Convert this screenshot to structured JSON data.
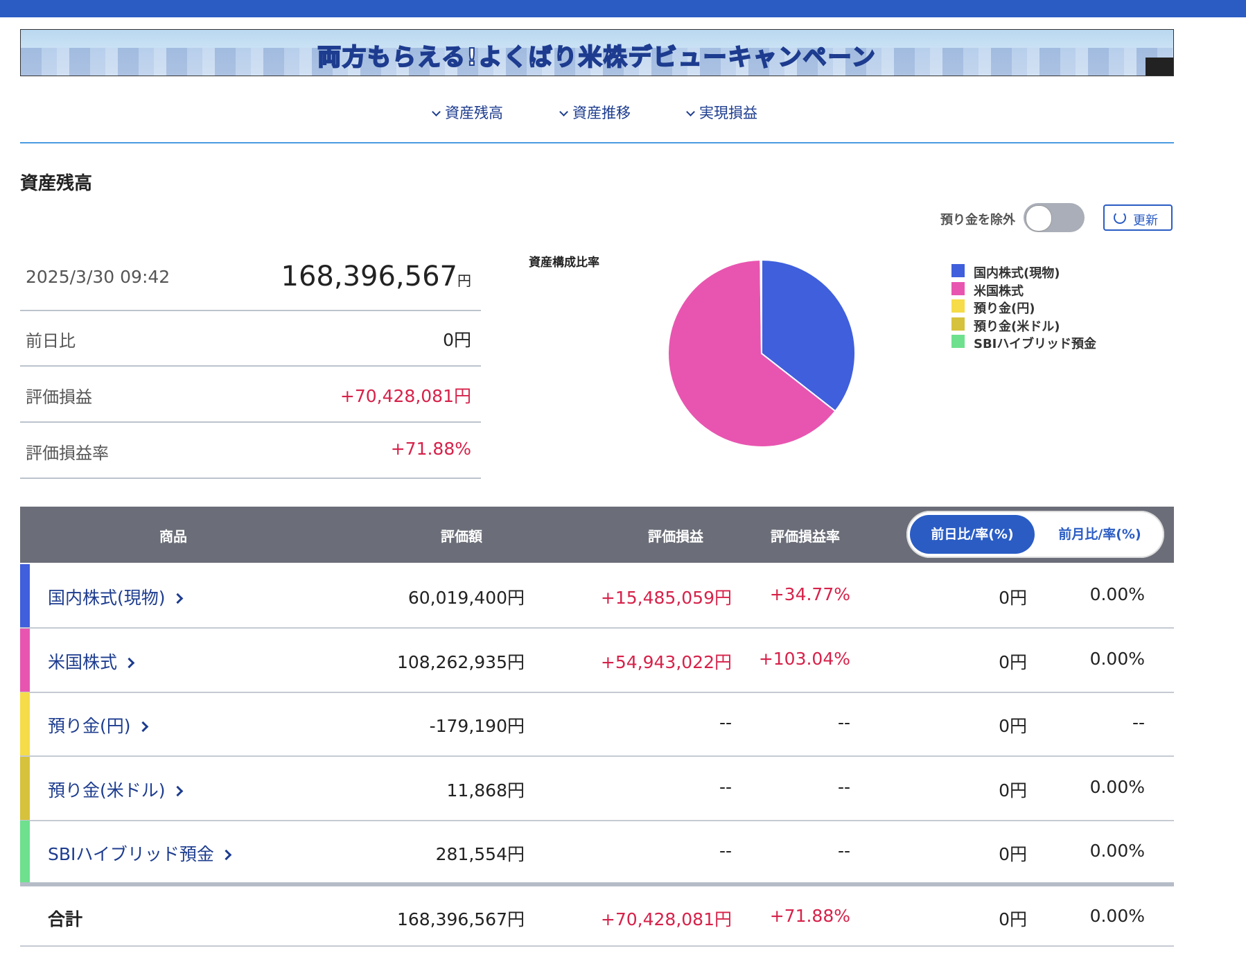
{
  "banner": {
    "text": "両方もらえる!よくばり米株デビューキャンペーン"
  },
  "nav": [
    "資産残高",
    "資産推移",
    "実現損益"
  ],
  "section_title": "資産残高",
  "controls": {
    "toggle_label": "預り金を除外",
    "refresh": "更新"
  },
  "summary": {
    "datetime": "2025/3/30 09:42",
    "total": "168,396,567",
    "total_unit": "円",
    "rows": [
      [
        "前日比",
        "0円"
      ],
      [
        "評価損益",
        "+70,428,081円"
      ],
      [
        "評価損益率",
        "+71.88%"
      ]
    ]
  },
  "chart_data": {
    "type": "pie",
    "title": "資産構成比率",
    "categories": [
      "国内株式(現物)",
      "米国株式",
      "預り金(円)",
      "預り金(米ドル)",
      "SBIハイブリッド預金"
    ],
    "values": [
      35.6,
      64.3,
      0,
      0,
      0.2
    ],
    "colors": [
      "#3f5fdc",
      "#e855b0",
      "#f5dc48",
      "#d6c23c",
      "#6ee08e"
    ]
  },
  "table": {
    "headers": [
      "商品",
      "評価額",
      "評価損益",
      "評価損益率"
    ],
    "tabs": [
      "前日比/率(%)",
      "前月比/率(%)"
    ],
    "rows": [
      [
        "国内株式(現物)",
        "60,019,400円",
        "+15,485,059円",
        "+34.77%",
        "0円",
        "0.00%"
      ],
      [
        "米国株式",
        "108,262,935円",
        "+54,943,022円",
        "+103.04%",
        "0円",
        "0.00%"
      ],
      [
        "預り金(円)",
        "-179,190円",
        "--",
        "--",
        "0円",
        "--"
      ],
      [
        "預り金(米ドル)",
        "11,868円",
        "--",
        "--",
        "0円",
        "0.00%"
      ],
      [
        "SBIハイブリッド預金",
        "281,554円",
        "--",
        "--",
        "0円",
        "0.00%"
      ]
    ],
    "total": [
      "合計",
      "168,396,567円",
      "+70,428,081円",
      "+71.88%",
      "0円",
      "0.00%"
    ]
  }
}
